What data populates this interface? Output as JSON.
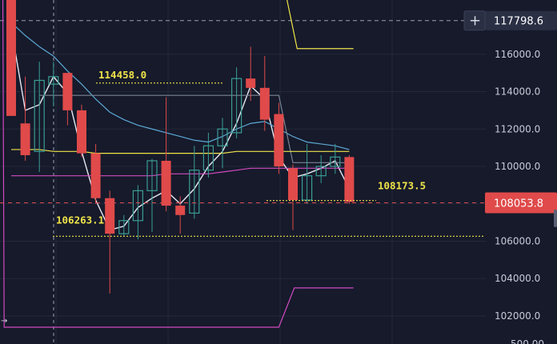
{
  "chart_data": {
    "type": "candlestick",
    "ylim": [
      100500,
      118900
    ],
    "price_axis": {
      "ticks": [
        "116000.0",
        "114000.0",
        "112000.0",
        "110000.0",
        "108000.0",
        "106000.0",
        "104000.0",
        "102000.0"
      ],
      "tick_values": [
        116000,
        114000,
        112000,
        110000,
        108000,
        106000,
        104000,
        102000
      ],
      "bottom_partial_label": "500.00"
    },
    "crosshair": {
      "price_label": "117798.6",
      "price": 117798.6,
      "plus_icon": "+"
    },
    "current_price": {
      "label": "108053.8",
      "price": 108053.8,
      "color": "#e04a4a"
    },
    "annotations": [
      {
        "label": "114458.0",
        "price": 114458.0,
        "color": "#f0e34a"
      },
      {
        "label": "106263.1",
        "price": 106263.1,
        "color": "#f0e34a"
      },
      {
        "label": "108173.5",
        "price": 108173.5,
        "color": "#f0e34a"
      }
    ],
    "candles": [
      {
        "open": 119000,
        "high": 119000,
        "low": 112700,
        "close": 112700
      },
      {
        "open": 112300,
        "high": 114800,
        "low": 110300,
        "close": 110600
      },
      {
        "open": 110800,
        "high": 115600,
        "low": 109700,
        "close": 114600
      },
      {
        "open": 114400,
        "high": 115600,
        "low": 113200,
        "close": 114800
      },
      {
        "open": 115000,
        "high": 115000,
        "low": 112200,
        "close": 113000
      },
      {
        "open": 113000,
        "high": 113300,
        "low": 110500,
        "close": 110700
      },
      {
        "open": 110700,
        "high": 111200,
        "low": 108000,
        "close": 108300
      },
      {
        "open": 108300,
        "high": 108700,
        "low": 103200,
        "close": 106400
      },
      {
        "open": 106400,
        "high": 107400,
        "low": 106300,
        "close": 107100
      },
      {
        "open": 107100,
        "high": 109000,
        "low": 106100,
        "close": 108700
      },
      {
        "open": 108700,
        "high": 110400,
        "low": 106500,
        "close": 110300
      },
      {
        "open": 110300,
        "high": 113700,
        "low": 107600,
        "close": 107900
      },
      {
        "open": 107900,
        "high": 108400,
        "low": 106400,
        "close": 107400
      },
      {
        "open": 107500,
        "high": 111100,
        "low": 107200,
        "close": 109800
      },
      {
        "open": 109800,
        "high": 111800,
        "low": 109400,
        "close": 111100
      },
      {
        "open": 111100,
        "high": 112600,
        "low": 109900,
        "close": 112000
      },
      {
        "open": 111800,
        "high": 115300,
        "low": 111500,
        "close": 114700
      },
      {
        "open": 114700,
        "high": 116400,
        "low": 113500,
        "close": 114200
      },
      {
        "open": 114200,
        "high": 115900,
        "low": 111900,
        "close": 112500
      },
      {
        "open": 112800,
        "high": 113400,
        "low": 109600,
        "close": 110000
      },
      {
        "open": 109900,
        "high": 110100,
        "low": 106600,
        "close": 108200
      },
      {
        "open": 108200,
        "high": 111200,
        "low": 108000,
        "close": 109500
      },
      {
        "open": 109500,
        "high": 110600,
        "low": 109100,
        "close": 110000
      },
      {
        "open": 110000,
        "high": 111200,
        "low": 109600,
        "close": 110500
      },
      {
        "open": 110500,
        "high": 110600,
        "low": 108000,
        "close": 108100
      }
    ],
    "moving_averages": [
      {
        "color": "#e8e8f0",
        "values": [
          117400,
          113000,
          113300,
          114800,
          113900,
          110800,
          108200,
          106600,
          106800,
          107800,
          108300,
          108700,
          108000,
          108800,
          110000,
          110800,
          112300,
          114300,
          113600,
          110500,
          109400,
          109600,
          109900,
          110300,
          108800
        ]
      },
      {
        "color": "#5da9d6",
        "values": [
          117700,
          117000,
          116400,
          115900,
          115100,
          114400,
          113600,
          112900,
          112500,
          112200,
          112000,
          111800,
          111600,
          111400,
          111300,
          111600,
          112000,
          112300,
          112400,
          112000,
          111600,
          111300,
          111200,
          111100,
          110900
        ]
      },
      {
        "color": "#7b8493",
        "values": [
          null,
          null,
          113800,
          113800,
          113800,
          113800,
          113800,
          113800,
          113800,
          113800,
          113800,
          113800,
          113800,
          113800,
          113800,
          113800,
          113800,
          113800,
          113800,
          113800,
          110200,
          110200,
          110200,
          110200,
          110200
        ]
      },
      {
        "color": "#f0e34a",
        "values": [
          110900,
          110900,
          110900,
          110800,
          110800,
          110800,
          110700,
          110700,
          110700,
          110700,
          110700,
          110700,
          110700,
          110700,
          110700,
          110700,
          110800,
          110800,
          110800,
          110800,
          110800,
          110800,
          110800,
          110800,
          110800
        ]
      },
      {
        "color": "#d24ac0",
        "values": [
          109500,
          109500,
          109500,
          109500,
          109500,
          109500,
          109500,
          109500,
          109500,
          109500,
          109500,
          109600,
          109600,
          109600,
          109600,
          109700,
          109800,
          109900,
          109900,
          109900,
          109900,
          109900,
          109900,
          109900,
          109900
        ]
      }
    ],
    "band_upper": {
      "color": "#f0e34a",
      "points": [
        [
          19.5,
          119200
        ],
        [
          20.3,
          116300
        ],
        [
          24.3,
          116300
        ]
      ]
    },
    "band_lower": {
      "color": "#d24ac0",
      "points": [
        [
          -0.6,
          120000
        ],
        [
          -0.5,
          101400
        ],
        [
          19.0,
          101400
        ],
        [
          20.1,
          103500
        ],
        [
          24.3,
          103500
        ]
      ]
    },
    "colors": {
      "up": "#3a9d94",
      "down": "#e04a4a",
      "axis_bg": "#161a2b",
      "grid": "#23283b"
    }
  },
  "arrow_icon": "→"
}
